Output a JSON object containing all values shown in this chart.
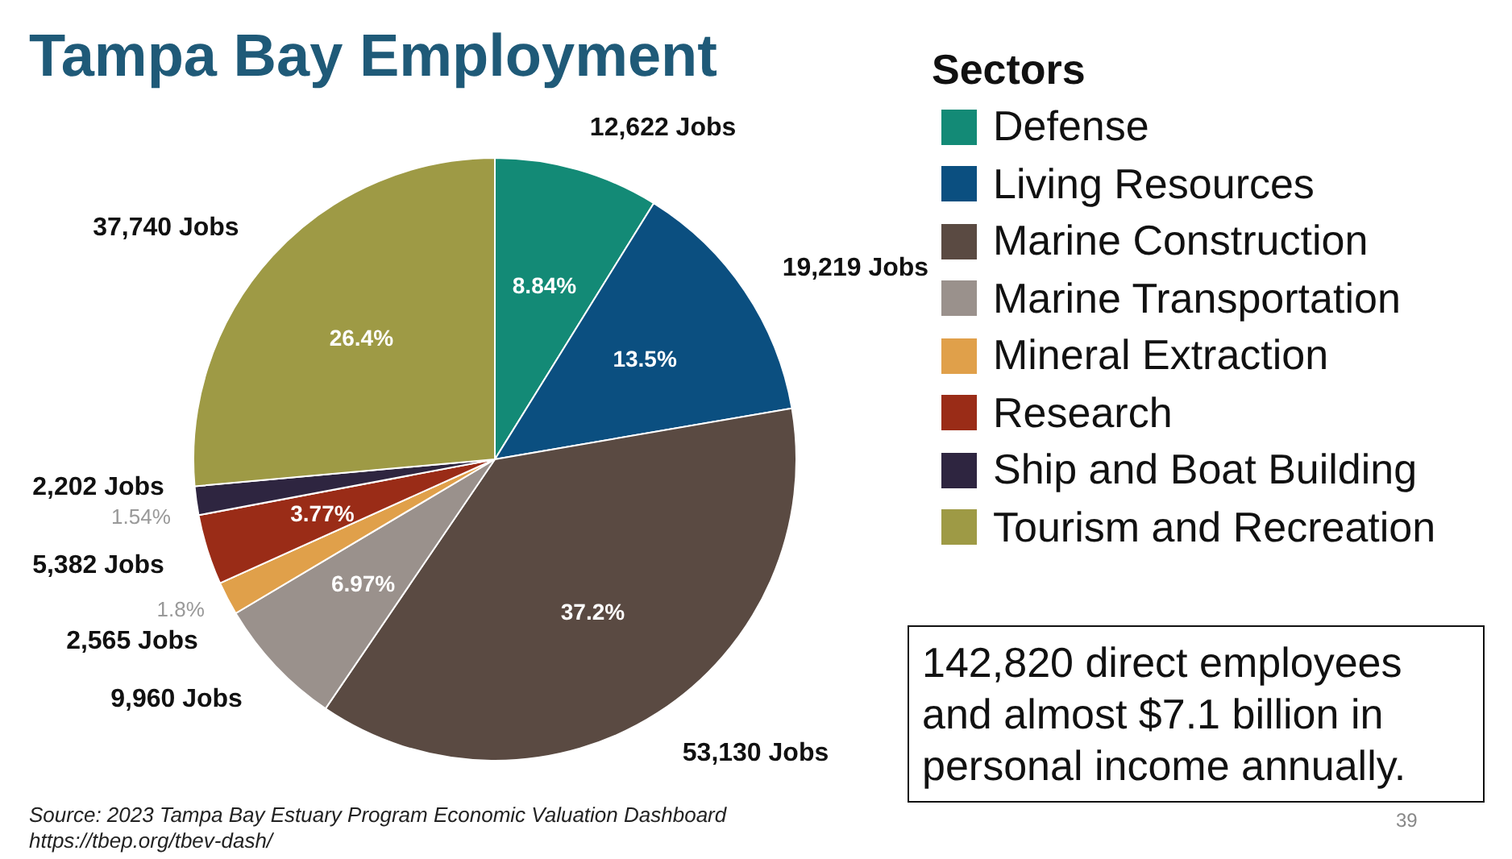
{
  "chart_data": {
    "type": "pie",
    "title": "Tampa Bay Employment",
    "legend_title": "Sectors",
    "legend": "top right",
    "categories": [
      "Defense",
      "Living Resources",
      "Marine Construction",
      "Marine Transportation",
      "Mineral Extraction",
      "Research",
      "Ship and Boat Building",
      "Tourism and Recreation"
    ],
    "values": [
      12622,
      19219,
      53130,
      9960,
      2565,
      5382,
      2202,
      37740
    ],
    "colors": [
      "#138a76",
      "#0b4f80",
      "#5a4a42",
      "#9a918c",
      "#e0a04a",
      "#9a2c17",
      "#2e2540",
      "#9e9a45"
    ],
    "value_labels": [
      "12,622 Jobs",
      "19,219 Jobs",
      "53,130 Jobs",
      "9,960 Jobs",
      "2,565 Jobs",
      "5,382 Jobs",
      "2,202 Jobs",
      "37,740 Jobs"
    ],
    "annotations": [
      {
        "text": "8.84%",
        "x": "Defense"
      },
      {
        "text": "13.5%",
        "x": "Living Resources"
      },
      {
        "text": "37.2%",
        "x": "Marine Construction"
      },
      {
        "text": "6.97%",
        "x": "Marine Transportation"
      },
      {
        "text": "1.8%",
        "x": "Mineral Extraction"
      },
      {
        "text": "3.77%",
        "x": "Research"
      },
      {
        "text": "1.54%",
        "x": "Ship and Boat Building"
      },
      {
        "text": "26.4%",
        "x": "Tourism and Recreation"
      },
      "Source: 2023 Tampa Bay Estuary Program Economic Valuation Dashboard",
      "https://tbep.org/tbev-dash/",
      "142,820 direct employees and almost $7.1 billion in personal income annually.",
      "39"
    ]
  }
}
